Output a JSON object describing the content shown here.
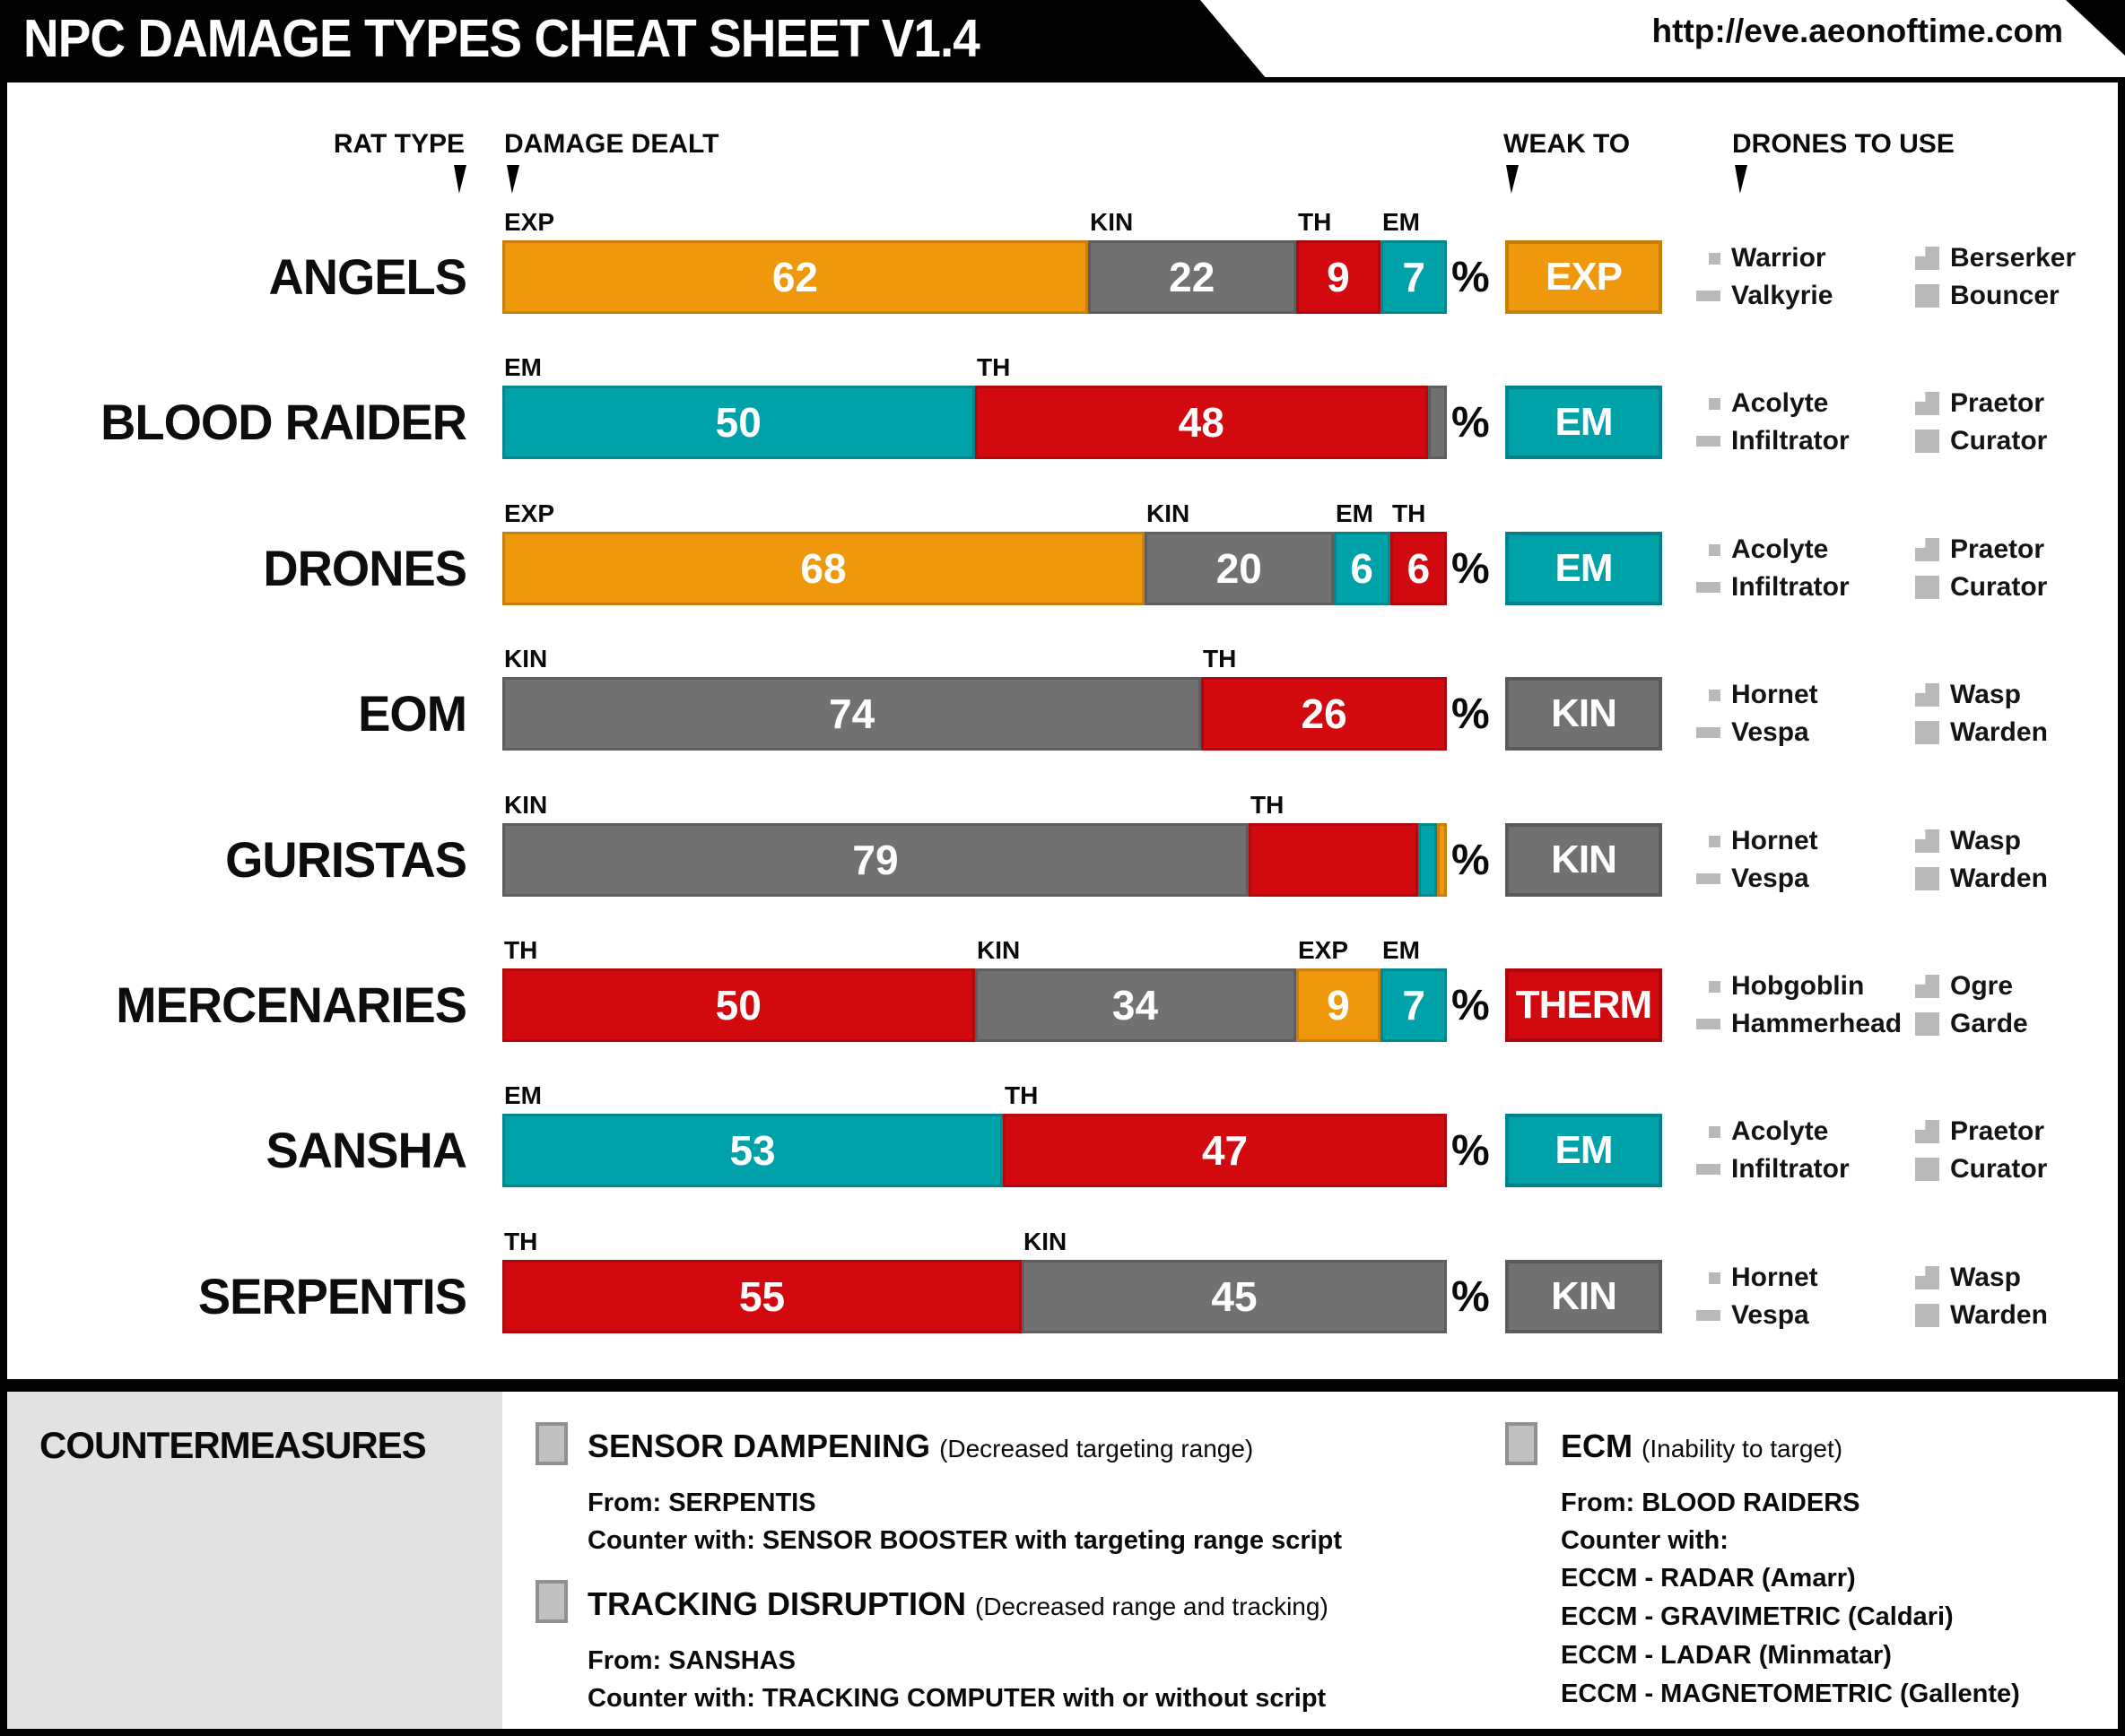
{
  "header": {
    "title": "NPC DAMAGE TYPES CHEAT SHEET V1.4",
    "url": "http://eve.aeonoftime.com"
  },
  "columns": {
    "rat_type": "RAT TYPE",
    "damage_dealt": "DAMAGE DEALT",
    "weak_to": "WEAK TO",
    "drones_to_use": "DRONES TO USE"
  },
  "percent_symbol": "%",
  "damage_types": {
    "EXP": {
      "color": "#F0980C",
      "border": "#C57E08"
    },
    "KIN": {
      "color": "#717171",
      "border": "#5A5A5A"
    },
    "TH": {
      "color": "#D20A10",
      "border": "#A8080D"
    },
    "EM": {
      "color": "#00A2A9",
      "border": "#00828A"
    }
  },
  "rows": [
    {
      "name": "ANGELS",
      "weak_to": "EXP",
      "weak_label": "EXP",
      "segments": [
        {
          "type": "EXP",
          "value": 62,
          "label": "EXP",
          "show_value": true
        },
        {
          "type": "KIN",
          "value": 22,
          "label": "KIN",
          "show_value": true
        },
        {
          "type": "TH",
          "value": 9,
          "label": "TH",
          "show_value": true
        },
        {
          "type": "EM",
          "value": 7,
          "label": "EM",
          "show_value": true
        }
      ],
      "drones": {
        "light": "Warrior",
        "medium": "Valkyrie",
        "heavy": "Berserker",
        "sentry": "Bouncer"
      }
    },
    {
      "name": "BLOOD RAIDER",
      "weak_to": "EM",
      "weak_label": "EM",
      "segments": [
        {
          "type": "EM",
          "value": 50,
          "label": "EM",
          "show_value": true
        },
        {
          "type": "TH",
          "value": 48,
          "label": "TH",
          "show_value": true
        },
        {
          "type": "KIN",
          "value": 2,
          "label": "",
          "show_value": false
        }
      ],
      "drones": {
        "light": "Acolyte",
        "medium": "Infiltrator",
        "heavy": "Praetor",
        "sentry": "Curator"
      }
    },
    {
      "name": "DRONES",
      "weak_to": "EM",
      "weak_label": "EM",
      "segments": [
        {
          "type": "EXP",
          "value": 68,
          "label": "EXP",
          "show_value": true
        },
        {
          "type": "KIN",
          "value": 20,
          "label": "KIN",
          "show_value": true
        },
        {
          "type": "EM",
          "value": 6,
          "label": "EM",
          "show_value": true
        },
        {
          "type": "TH",
          "value": 6,
          "label": "TH",
          "show_value": true
        }
      ],
      "drones": {
        "light": "Acolyte",
        "medium": "Infiltrator",
        "heavy": "Praetor",
        "sentry": "Curator"
      }
    },
    {
      "name": "EOM",
      "weak_to": "KIN",
      "weak_label": "KIN",
      "segments": [
        {
          "type": "KIN",
          "value": 74,
          "label": "KIN",
          "show_value": true
        },
        {
          "type": "TH",
          "value": 26,
          "label": "TH",
          "show_value": true
        }
      ],
      "drones": {
        "light": "Hornet",
        "medium": "Vespa",
        "heavy": "Wasp",
        "sentry": "Warden"
      }
    },
    {
      "name": "GURISTAS",
      "weak_to": "KIN",
      "weak_label": "KIN",
      "segments": [
        {
          "type": "KIN",
          "value": 79,
          "label": "KIN",
          "show_value": true
        },
        {
          "type": "TH",
          "value": 18,
          "label": "TH",
          "show_value": false
        },
        {
          "type": "EM",
          "value": 2,
          "label": "",
          "show_value": false
        },
        {
          "type": "EXP",
          "value": 1,
          "label": "",
          "show_value": false
        }
      ],
      "drones": {
        "light": "Hornet",
        "medium": "Vespa",
        "heavy": "Wasp",
        "sentry": "Warden"
      }
    },
    {
      "name": "MERCENARIES",
      "weak_to": "TH",
      "weak_label": "THERM",
      "segments": [
        {
          "type": "TH",
          "value": 50,
          "label": "TH",
          "show_value": true
        },
        {
          "type": "KIN",
          "value": 34,
          "label": "KIN",
          "show_value": true
        },
        {
          "type": "EXP",
          "value": 9,
          "label": "EXP",
          "show_value": true
        },
        {
          "type": "EM",
          "value": 7,
          "label": "EM",
          "show_value": true
        }
      ],
      "drones": {
        "light": "Hobgoblin",
        "medium": "Hammerhead",
        "heavy": "Ogre",
        "sentry": "Garde"
      }
    },
    {
      "name": "SANSHA",
      "weak_to": "EM",
      "weak_label": "EM",
      "segments": [
        {
          "type": "EM",
          "value": 53,
          "label": "EM",
          "show_value": true
        },
        {
          "type": "TH",
          "value": 47,
          "label": "TH",
          "show_value": true
        }
      ],
      "drones": {
        "light": "Acolyte",
        "medium": "Infiltrator",
        "heavy": "Praetor",
        "sentry": "Curator"
      }
    },
    {
      "name": "SERPENTIS",
      "weak_to": "KIN",
      "weak_label": "KIN",
      "segments": [
        {
          "type": "TH",
          "value": 55,
          "label": "TH",
          "show_value": true
        },
        {
          "type": "KIN",
          "value": 45,
          "label": "KIN",
          "show_value": true
        }
      ],
      "drones": {
        "light": "Hornet",
        "medium": "Vespa",
        "heavy": "Wasp",
        "sentry": "Warden"
      }
    }
  ],
  "countermeasures": {
    "title": "COUNTERMEASURES",
    "left": [
      {
        "name": "SENSOR DAMPENING",
        "effect": "(Decreased targeting range)",
        "from": "From: SERPENTIS",
        "counter": "Counter with:  SENSOR BOOSTER with targeting range script"
      },
      {
        "name": "TRACKING DISRUPTION",
        "effect": "(Decreased range and tracking)",
        "from": "From: SANSHAS",
        "counter": "Counter with:  TRACKING COMPUTER with or without script"
      }
    ],
    "right": [
      {
        "name": "ECM",
        "effect": "(Inability to target)",
        "from": "From: BLOOD RAIDERS",
        "counter": "Counter with:",
        "counter_lines": [
          "ECCM - RADAR (Amarr)",
          "ECCM - GRAVIMETRIC (Caldari)",
          "ECCM - LADAR (Minmatar)",
          "ECCM - MAGNETOMETRIC (Gallente)"
        ]
      }
    ]
  },
  "chart_data": {
    "type": "bar",
    "subtype": "stacked-horizontal",
    "unit": "percent",
    "title": "NPC DAMAGE TYPES CHEAT SHEET V1.4",
    "categories": [
      "ANGELS",
      "BLOOD RAIDER",
      "DRONES",
      "EOM",
      "GURISTAS",
      "MERCENARIES",
      "SANSHA",
      "SERPENTIS"
    ],
    "segments_in_order": [
      [
        [
          "EXP",
          62
        ],
        [
          "KIN",
          22
        ],
        [
          "TH",
          9
        ],
        [
          "EM",
          7
        ]
      ],
      [
        [
          "EM",
          50
        ],
        [
          "TH",
          48
        ],
        [
          "KIN",
          2
        ]
      ],
      [
        [
          "EXP",
          68
        ],
        [
          "KIN",
          20
        ],
        [
          "EM",
          6
        ],
        [
          "TH",
          6
        ]
      ],
      [
        [
          "KIN",
          74
        ],
        [
          "TH",
          26
        ]
      ],
      [
        [
          "KIN",
          79
        ],
        [
          "TH",
          18
        ],
        [
          "EM",
          2
        ],
        [
          "EXP",
          1
        ]
      ],
      [
        [
          "TH",
          50
        ],
        [
          "KIN",
          34
        ],
        [
          "EXP",
          9
        ],
        [
          "EM",
          7
        ]
      ],
      [
        [
          "EM",
          53
        ],
        [
          "TH",
          47
        ]
      ],
      [
        [
          "TH",
          55
        ],
        [
          "KIN",
          45
        ]
      ]
    ],
    "series": [
      {
        "name": "EXP",
        "color": "#F0980C",
        "values": [
          62,
          0,
          68,
          0,
          1,
          9,
          0,
          0
        ]
      },
      {
        "name": "KIN",
        "color": "#717171",
        "values": [
          22,
          2,
          20,
          74,
          79,
          34,
          0,
          45
        ]
      },
      {
        "name": "TH",
        "color": "#D20A10",
        "values": [
          9,
          48,
          6,
          26,
          18,
          50,
          47,
          55
        ]
      },
      {
        "name": "EM",
        "color": "#00A2A9",
        "values": [
          7,
          50,
          6,
          0,
          2,
          7,
          53,
          0
        ]
      }
    ],
    "weak_to": [
      "EXP",
      "EM",
      "EM",
      "KIN",
      "KIN",
      "THERM",
      "EM",
      "KIN"
    ],
    "xlim": [
      0,
      100
    ],
    "grid": false,
    "legend_position": "per-segment-labels"
  }
}
